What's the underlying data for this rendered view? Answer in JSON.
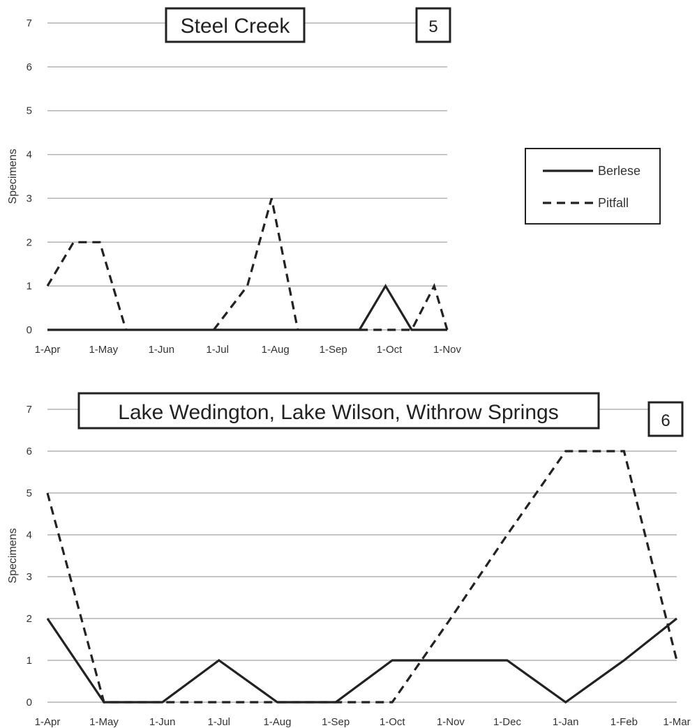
{
  "chart_data": [
    {
      "type": "line",
      "title": "Steel Creek",
      "panel_number": "5",
      "ylabel": "Specimens",
      "ylim": [
        0,
        7
      ],
      "yticks": [
        "0",
        "1",
        "2",
        "3",
        "4",
        "5",
        "6",
        "7"
      ],
      "x_tick_labels": [
        "1-Apr",
        "1-May",
        "1-Jun",
        "1-Jul",
        "1-Aug",
        "1-Sep",
        "1-Oct",
        "1-Nov"
      ],
      "x_tick_dates": [
        "2000-04-01",
        "2000-05-01",
        "2000-06-01",
        "2000-07-01",
        "2000-08-01",
        "2000-09-01",
        "2000-10-01",
        "2000-11-01"
      ],
      "grid": true,
      "legend": "right",
      "series": [
        {
          "name": "Berlese",
          "style": "solid",
          "points": [
            {
              "x": "2000-04-01",
              "y": 0
            },
            {
              "x": "2000-09-15",
              "y": 0
            },
            {
              "x": "2000-09-29",
              "y": 1
            },
            {
              "x": "2000-10-13",
              "y": 0
            },
            {
              "x": "2000-11-01",
              "y": 0
            }
          ]
        },
        {
          "name": "Pitfall",
          "style": "dashed",
          "points": [
            {
              "x": "2000-04-01",
              "y": 1
            },
            {
              "x": "2000-04-15",
              "y": 2
            },
            {
              "x": "2000-04-29",
              "y": 2
            },
            {
              "x": "2000-05-13",
              "y": 0
            },
            {
              "x": "2000-06-29",
              "y": 0,
              "gap_before": true
            },
            {
              "x": "2000-07-17",
              "y": 1
            },
            {
              "x": "2000-07-30",
              "y": 3
            },
            {
              "x": "2000-08-13",
              "y": 0
            },
            {
              "x": "2000-09-15",
              "y": 0,
              "gap_before": true
            },
            {
              "x": "2000-10-13",
              "y": 0
            },
            {
              "x": "2000-10-25",
              "y": 1
            },
            {
              "x": "2000-11-01",
              "y": 0
            }
          ]
        }
      ]
    },
    {
      "type": "line",
      "title": "Lake Wedington, Lake Wilson, Withrow Springs",
      "panel_number": "6",
      "ylabel": "Specimens",
      "ylim": [
        0,
        7
      ],
      "yticks": [
        "0",
        "1",
        "2",
        "3",
        "4",
        "5",
        "6",
        "7"
      ],
      "x_tick_labels": [
        "1-Apr",
        "1-May",
        "1-Jun",
        "1-Jul",
        "1-Aug",
        "1-Sep",
        "1-Oct",
        "1-Nov",
        "1-Dec",
        "1-Jan",
        "1-Feb",
        "1-Mar"
      ],
      "x_tick_dates": [
        "2000-04-01",
        "2000-05-01",
        "2000-06-01",
        "2000-07-01",
        "2000-08-01",
        "2000-09-01",
        "2000-10-01",
        "2000-11-01",
        "2000-12-01",
        "2001-01-01",
        "2001-02-01",
        "2001-03-01"
      ],
      "grid": true,
      "series": [
        {
          "name": "Berlese",
          "style": "solid",
          "points": [
            {
              "x": "2000-04-01",
              "y": 2
            },
            {
              "x": "2000-05-01",
              "y": 0
            },
            {
              "x": "2000-06-01",
              "y": 0
            },
            {
              "x": "2000-07-01",
              "y": 1
            },
            {
              "x": "2000-08-01",
              "y": 0
            },
            {
              "x": "2000-09-01",
              "y": 0
            },
            {
              "x": "2000-10-01",
              "y": 1
            },
            {
              "x": "2000-11-01",
              "y": 1
            },
            {
              "x": "2000-12-01",
              "y": 1
            },
            {
              "x": "2001-01-01",
              "y": 0
            },
            {
              "x": "2001-02-01",
              "y": 1
            },
            {
              "x": "2001-03-01",
              "y": 2
            }
          ]
        },
        {
          "name": "Pitfall",
          "style": "dashed",
          "points": [
            {
              "x": "2000-04-01",
              "y": 5
            },
            {
              "x": "2000-05-01",
              "y": 0
            },
            {
              "x": "2000-06-01",
              "y": 0
            },
            {
              "x": "2000-07-01",
              "y": 0
            },
            {
              "x": "2000-08-01",
              "y": 0
            },
            {
              "x": "2000-09-01",
              "y": 0
            },
            {
              "x": "2000-10-01",
              "y": 0
            },
            {
              "x": "2000-11-01",
              "y": 2
            },
            {
              "x": "2000-12-01",
              "y": 4
            },
            {
              "x": "2001-01-01",
              "y": 6
            },
            {
              "x": "2001-02-01",
              "y": 6
            },
            {
              "x": "2001-03-01",
              "y": 1
            }
          ]
        }
      ]
    }
  ]
}
